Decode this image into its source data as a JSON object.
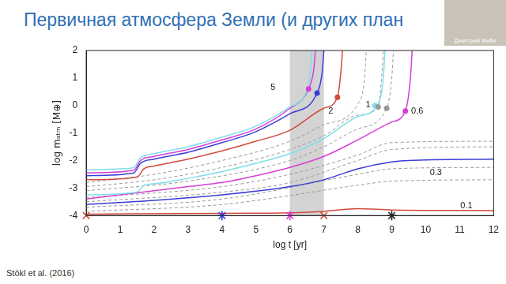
{
  "slide": {
    "citation": "Stökl et al. (2016)",
    "speaker": "Дмитрий Вибе"
  },
  "chart_data": {
    "type": "line",
    "title": "Первичная атмосфера Земли (и других план",
    "xlabel": "log t [yr]",
    "ylabel": "log mₐₜₘ [M⊕]",
    "xlim": [
      0,
      12
    ],
    "xticks": [
      0,
      1,
      2,
      3,
      4,
      5,
      6,
      7,
      8,
      9,
      10,
      11,
      12
    ],
    "ylim": [
      -4,
      2
    ],
    "yticks": [
      -4,
      -3,
      -2,
      -1,
      0,
      1,
      2
    ],
    "grid": false,
    "highlight_x": [
      6,
      7
    ],
    "annotations": [
      {
        "text": "5",
        "x": 5.5,
        "y": 0.65
      },
      {
        "text": "2",
        "x": 7.2,
        "y": -0.2
      },
      {
        "text": "1",
        "x": 8.3,
        "y": 0.03
      },
      {
        "text": "0.6",
        "x": 9.75,
        "y": -0.2
      },
      {
        "text": "0.3",
        "x": 10.3,
        "y": -2.45
      },
      {
        "text": "0.1",
        "x": 11.2,
        "y": -3.65
      }
    ],
    "series": [
      {
        "color": "#7fdfe8",
        "line_style": "solid",
        "x": [
          0,
          1,
          1.4,
          1.6,
          2,
          3,
          4,
          5,
          6,
          6.5,
          6.6,
          6.65
        ],
        "values": [
          -2.35,
          -2.3,
          -2.25,
          -1.9,
          -1.75,
          -1.5,
          -1.15,
          -0.75,
          -0.05,
          0.55,
          1.2,
          2
        ]
      },
      {
        "color": "#d63fd6",
        "line_style": "solid",
        "x": [
          0,
          1.4,
          1.6,
          2,
          3,
          4,
          5,
          6,
          6.55,
          6.7,
          6.75
        ],
        "values": [
          -2.45,
          -2.35,
          -2.0,
          -1.85,
          -1.6,
          -1.25,
          -0.85,
          -0.1,
          0.6,
          1.3,
          2
        ]
      },
      {
        "color": "#3b3bd6",
        "line_style": "solid",
        "x": [
          0,
          1.4,
          1.6,
          2,
          3,
          4,
          5,
          6,
          6.8,
          6.95,
          7
        ],
        "values": [
          -2.55,
          -2.45,
          -2.1,
          -1.95,
          -1.7,
          -1.35,
          -0.95,
          -0.3,
          0.45,
          1.2,
          2
        ]
      },
      {
        "color": "#d24a3a",
        "line_style": "solid",
        "x": [
          0,
          1.5,
          1.7,
          2,
          3,
          4,
          5,
          6,
          7,
          7.4,
          7.5,
          7.55
        ],
        "values": [
          -2.7,
          -2.6,
          -2.3,
          -2.2,
          -1.95,
          -1.65,
          -1.3,
          -0.9,
          -0.1,
          0.3,
          1.2,
          2
        ]
      },
      {
        "color": "#7fdfe8",
        "line_style": "solid",
        "x": [
          0,
          1.5,
          1.7,
          2,
          3,
          4,
          5,
          6,
          7,
          8,
          8.6,
          8.75,
          8.8
        ],
        "values": [
          -3.25,
          -3.15,
          -2.9,
          -2.85,
          -2.65,
          -2.4,
          -2.1,
          -1.75,
          -1.2,
          -0.4,
          0.05,
          1,
          2
        ]
      },
      {
        "color": "#d63fd6",
        "line_style": "solid",
        "x": [
          0,
          2,
          3,
          4,
          5,
          6,
          7,
          8,
          9,
          9.4,
          9.55,
          9.6
        ],
        "values": [
          -3.4,
          -3.1,
          -2.95,
          -2.8,
          -2.55,
          -2.25,
          -1.85,
          -1.25,
          -0.6,
          -0.2,
          1,
          2
        ]
      },
      {
        "color": "#3b3bd6",
        "line_style": "solid",
        "x": [
          0,
          2,
          4,
          6,
          7,
          8,
          9,
          9.5,
          12
        ],
        "values": [
          -3.6,
          -3.45,
          -3.25,
          -2.95,
          -2.7,
          -2.3,
          -2.05,
          -2.0,
          -1.95
        ]
      },
      {
        "color": "#d24a3a",
        "line_style": "solid",
        "x": [
          0,
          4,
          6,
          7,
          8,
          9,
          12
        ],
        "values": [
          -3.95,
          -3.92,
          -3.9,
          -3.85,
          -3.75,
          -3.8,
          -3.82
        ]
      },
      {
        "color": "#999999",
        "line_style": "dashed",
        "x": [
          0,
          2,
          4,
          6,
          7,
          8,
          8.2,
          8.25
        ],
        "values": [
          -2.8,
          -2.5,
          -2.0,
          -1.3,
          -0.7,
          0.05,
          1,
          2
        ]
      },
      {
        "color": "#999999",
        "line_style": "dashed",
        "x": [
          0,
          2,
          4,
          6,
          7,
          8,
          8.6,
          8.7,
          8.75
        ],
        "values": [
          -2.95,
          -2.7,
          -2.25,
          -1.6,
          -1.1,
          -0.35,
          -0.05,
          1,
          2
        ]
      },
      {
        "color": "#999999",
        "line_style": "dashed",
        "x": [
          0,
          3,
          6,
          7,
          8,
          8.85,
          9.0,
          9.05
        ],
        "values": [
          -3.1,
          -2.75,
          -2.0,
          -1.5,
          -0.85,
          -0.1,
          1,
          2
        ]
      },
      {
        "color": "#999999",
        "line_style": "dashed",
        "x": [
          0,
          4,
          6,
          8,
          9,
          12
        ],
        "values": [
          -3.35,
          -2.95,
          -2.5,
          -1.8,
          -1.35,
          -1.3
        ]
      },
      {
        "color": "#999999",
        "line_style": "dashed",
        "x": [
          0,
          4,
          6,
          8,
          9,
          12
        ],
        "values": [
          -3.5,
          -3.15,
          -2.8,
          -2.0,
          -1.6,
          -1.5
        ]
      },
      {
        "color": "#999999",
        "line_style": "dashed",
        "x": [
          0,
          4,
          8,
          9,
          12
        ],
        "values": [
          -3.7,
          -3.4,
          -2.5,
          -2.3,
          -2.25
        ]
      },
      {
        "color": "#999999",
        "line_style": "dashed",
        "x": [
          0,
          4,
          8,
          9,
          12
        ],
        "values": [
          -3.85,
          -3.6,
          -2.9,
          -2.75,
          -2.7
        ]
      },
      {
        "type": "scatter",
        "marker": "circle",
        "colors": [
          "#d63fd6",
          "#3b3bd6",
          "#d24a3a",
          "#7fdfe8",
          "#999999",
          "#999999",
          "#d63fd6"
        ],
        "x": [
          6.55,
          6.8,
          7.4,
          8.5,
          8.6,
          8.85,
          9.4
        ],
        "values": [
          0.6,
          0.45,
          0.3,
          0.0,
          -0.05,
          -0.1,
          -0.2
        ]
      },
      {
        "type": "scatter",
        "marker": "cross",
        "colors": [
          "#d24a3a",
          "#d24a3a"
        ],
        "x": [
          0,
          7
        ],
        "values": [
          -4,
          -4
        ]
      },
      {
        "type": "scatter",
        "marker": "star",
        "colors": [
          "#3b3bd6",
          "#d63fd6",
          "#222222"
        ],
        "x": [
          4,
          6,
          9
        ],
        "values": [
          -4,
          -4,
          -4
        ]
      }
    ]
  }
}
